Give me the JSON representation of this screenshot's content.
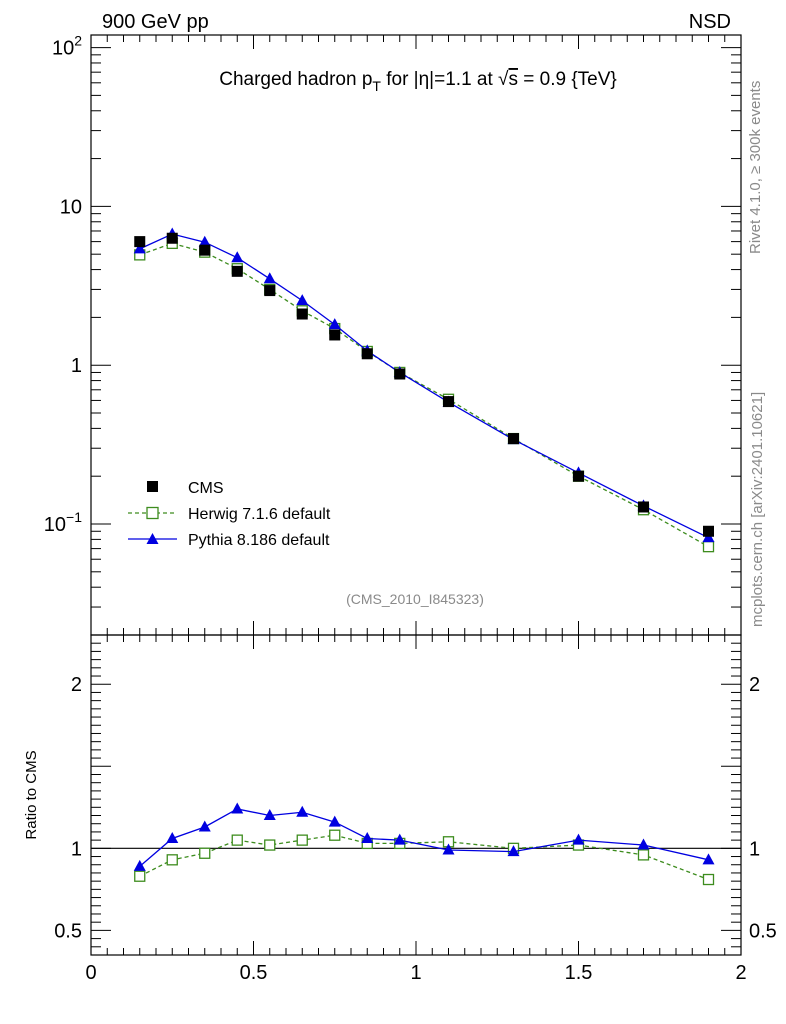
{
  "header": {
    "left": "900 GeV pp",
    "right": "NSD"
  },
  "side": {
    "rivet": "Rivet 4.1.0, ≥ 300k events",
    "source": "mcplots.cern.ch [arXiv:2401.10621]"
  },
  "chart_data": [
    {
      "type": "scatter",
      "panel": "main",
      "title_parts": {
        "a": "Charged hadron p",
        "sub": "T",
        "b": " for |η|=1.1 at ",
        "root": "√",
        "s": "s",
        "c": " = 0.9 {TeV}"
      },
      "analysis_label": "(CMS_2010_I845323)",
      "xlim": [
        0,
        2
      ],
      "ylim": [
        0.02,
        120
      ],
      "yscale": "log",
      "ytick_labels": [
        {
          "value": 0.1,
          "base": "10",
          "exp": "−1"
        },
        {
          "value": 1,
          "base": "1",
          "exp": ""
        },
        {
          "value": 10,
          "base": "10",
          "exp": ""
        },
        {
          "value": 100,
          "base": "10",
          "exp": "2"
        }
      ],
      "x": [
        0.15,
        0.25,
        0.35,
        0.45,
        0.55,
        0.65,
        0.75,
        0.85,
        0.95,
        1.1,
        1.3,
        1.5,
        1.7,
        1.9
      ],
      "series": [
        {
          "name": "CMS",
          "color": "#000000",
          "marker": "filled-square",
          "line": "none",
          "values": [
            6.0,
            6.3,
            5.3,
            3.9,
            2.95,
            2.1,
            1.55,
            1.18,
            0.88,
            0.59,
            0.345,
            0.2,
            0.128,
            0.09
          ]
        },
        {
          "name": "Herwig 7.1.6 default",
          "color": "#3d8c1e",
          "marker": "open-square",
          "line": "dashed",
          "values": [
            4.95,
            5.85,
            5.15,
            4.05,
            3.0,
            2.2,
            1.7,
            1.22,
            0.9,
            0.61,
            0.345,
            0.2,
            0.123,
            0.072
          ]
        },
        {
          "name": "Pythia 8.186 default",
          "color": "#0000e0",
          "marker": "filled-triangle",
          "line": "solid",
          "values": [
            5.4,
            6.7,
            5.95,
            4.75,
            3.5,
            2.55,
            1.8,
            1.23,
            0.9,
            0.585,
            0.34,
            0.21,
            0.13,
            0.082
          ]
        }
      ]
    },
    {
      "type": "line",
      "panel": "ratio",
      "ylabel": "Ratio to CMS",
      "xlim": [
        0,
        2
      ],
      "ylim": [
        0.35,
        2.3
      ],
      "xtick_labels": [
        {
          "value": 0,
          "label": "0"
        },
        {
          "value": 0.5,
          "label": "0.5"
        },
        {
          "value": 1,
          "label": "1"
        },
        {
          "value": 1.5,
          "label": "1.5"
        },
        {
          "value": 2,
          "label": "2"
        }
      ],
      "ytick_labels": [
        {
          "value": 0.5,
          "label": "0.5"
        },
        {
          "value": 1,
          "label": "1"
        },
        {
          "value": 2,
          "label": "2"
        }
      ],
      "reference": 1,
      "x": [
        0.15,
        0.25,
        0.35,
        0.45,
        0.55,
        0.65,
        0.75,
        0.85,
        0.95,
        1.1,
        1.3,
        1.5,
        1.7,
        1.9
      ],
      "series": [
        {
          "name": "Herwig 7.1.6 default",
          "color": "#3d8c1e",
          "marker": "open-square",
          "line": "dashed",
          "values": [
            0.83,
            0.93,
            0.97,
            1.05,
            1.02,
            1.05,
            1.08,
            1.03,
            1.03,
            1.04,
            1.0,
            1.02,
            0.96,
            0.81
          ]
        },
        {
          "name": "Pythia 8.186 default",
          "color": "#0000e0",
          "marker": "filled-triangle",
          "line": "solid",
          "values": [
            0.89,
            1.06,
            1.13,
            1.24,
            1.2,
            1.22,
            1.16,
            1.06,
            1.05,
            0.99,
            0.98,
            1.05,
            1.02,
            0.93
          ]
        }
      ]
    }
  ]
}
